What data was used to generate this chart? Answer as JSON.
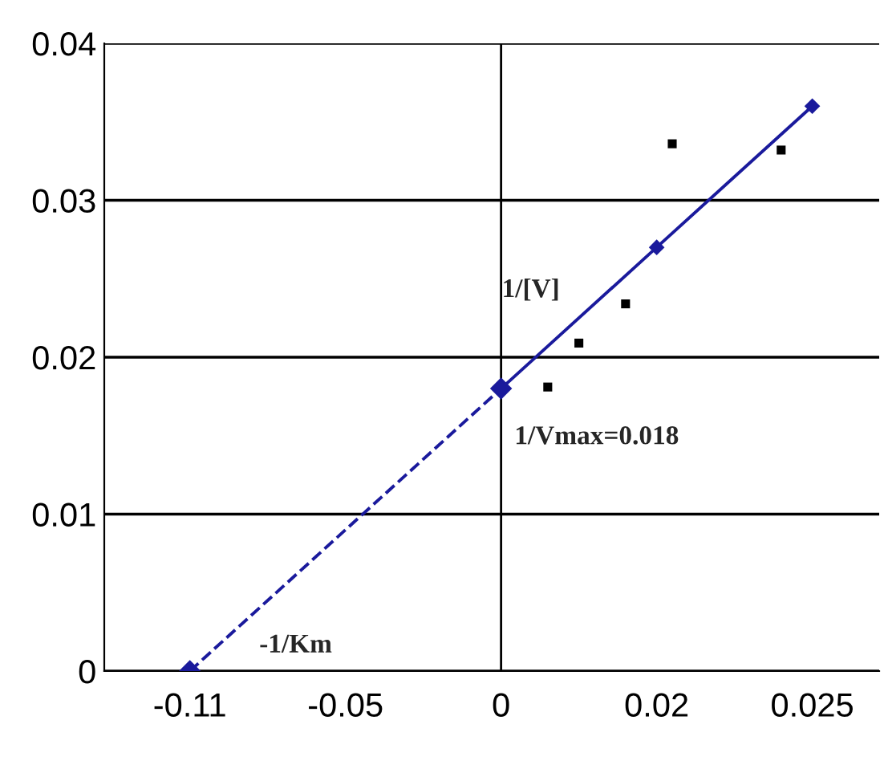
{
  "chart_data": {
    "type": "line",
    "categories": [
      "-0.11",
      null,
      null,
      null,
      null,
      null,
      null,
      null,
      null,
      null,
      "-0.05",
      null,
      null,
      null,
      null,
      null,
      null,
      null,
      null,
      null,
      "0",
      null,
      null,
      null,
      null,
      null,
      null,
      null,
      null,
      null,
      "0.02",
      null,
      null,
      null,
      null,
      null,
      null,
      null,
      null,
      null,
      "0.025"
    ],
    "ylim": [
      0,
      0.04
    ],
    "yticks": [
      0,
      0.01,
      0.02,
      0.03,
      0.04
    ],
    "grid": "y",
    "legend": false,
    "series": [
      {
        "color": "#1a1a9c",
        "line_style": "dashed",
        "marker": "diamond",
        "values": [
          0,
          null,
          null,
          null,
          null,
          null,
          null,
          null,
          null,
          null,
          null,
          null,
          null,
          null,
          null,
          null,
          null,
          null,
          null,
          null,
          0.018,
          null,
          null,
          null,
          null,
          null,
          null,
          null,
          null,
          null,
          null,
          null,
          null,
          null,
          null,
          null,
          null,
          null,
          null,
          null,
          null
        ]
      },
      {
        "color": "#1a1a9c",
        "line_style": "solid",
        "marker": "diamond",
        "values": [
          null,
          null,
          null,
          null,
          null,
          null,
          null,
          null,
          null,
          null,
          null,
          null,
          null,
          null,
          null,
          null,
          null,
          null,
          null,
          null,
          0.018,
          null,
          null,
          null,
          null,
          null,
          null,
          null,
          null,
          null,
          0.027,
          null,
          null,
          null,
          null,
          null,
          null,
          null,
          null,
          null,
          0.036
        ]
      },
      {
        "type": "scatter",
        "color": "#000000",
        "marker": "square",
        "values": [
          null,
          null,
          null,
          null,
          null,
          null,
          null,
          null,
          null,
          null,
          null,
          null,
          null,
          null,
          null,
          null,
          null,
          null,
          null,
          null,
          null,
          null,
          null,
          0.0181,
          null,
          0.0209,
          null,
          null,
          0.0234,
          null,
          null,
          0.0336,
          null,
          null,
          null,
          null,
          null,
          null,
          0.0332,
          null,
          null
        ]
      }
    ],
    "ref_lines": [
      {
        "axis": "x",
        "value": "0",
        "color": "#000000"
      }
    ],
    "annotations": [
      "1/[V]",
      {
        "text": "1/Vmax=0.018",
        "x": "0",
        "y": 0.018
      },
      "-1/Km"
    ]
  }
}
